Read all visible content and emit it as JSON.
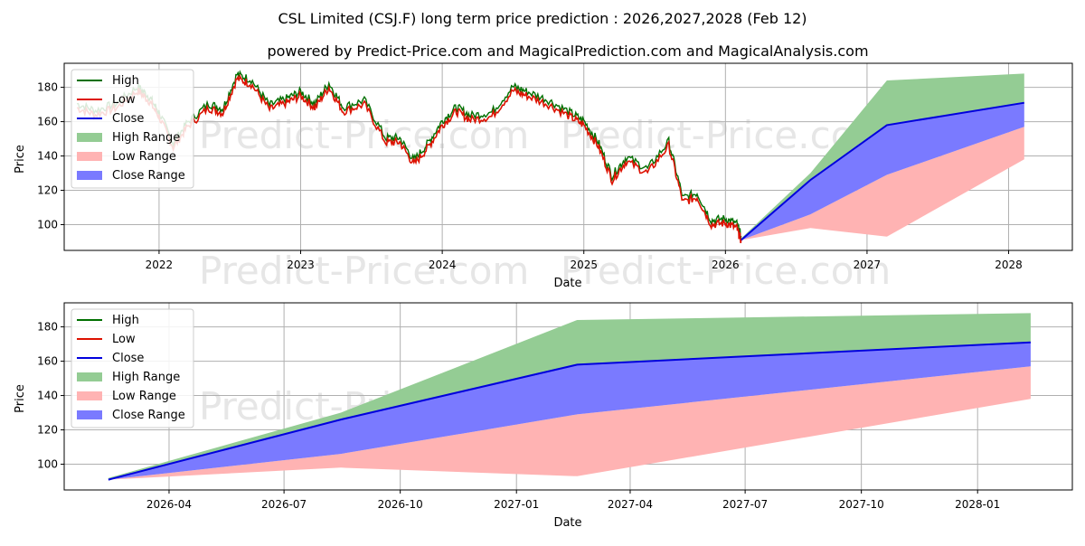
{
  "title": "CSL Limited (CSJ.F) long term price prediction : 2026,2027,2028 (Feb 12)",
  "subtitle": "powered by Predict-Price.com and MagicalPrediction.com and MagicalAnalysis.com",
  "watermark": "Predict-Price.com",
  "colors": {
    "high": "#007000",
    "low": "#dd1100",
    "close": "#0000dd",
    "high_range": "#94cc94",
    "low_range": "#ffb3b3",
    "close_range": "#7a7aff",
    "grid": "#b0b0b0"
  },
  "chart_data": [
    {
      "type": "line",
      "panel": "top",
      "xlabel": "Date",
      "ylabel": "Price",
      "xlim": [
        2021.33,
        2028.45
      ],
      "ylim": [
        85,
        194
      ],
      "x_ticks": [
        2022,
        2023,
        2024,
        2025,
        2026,
        2027,
        2028
      ],
      "x_tick_labels": [
        "2022",
        "2023",
        "2024",
        "2025",
        "2026",
        "2027",
        "2028"
      ],
      "y_ticks": [
        100,
        120,
        140,
        160,
        180
      ],
      "legend": [
        "High",
        "Low",
        "Close",
        "High Range",
        "Low Range",
        "Close Range"
      ],
      "legend_position": "top-left",
      "history": {
        "x": [
          2021.42,
          2021.55,
          2021.7,
          2021.85,
          2021.93,
          2022.0,
          2022.1,
          2022.2,
          2022.35,
          2022.45,
          2022.55,
          2022.65,
          2022.78,
          2022.9,
          2023.0,
          2023.1,
          2023.2,
          2023.3,
          2023.45,
          2023.6,
          2023.7,
          2023.8,
          2023.9,
          2024.0,
          2024.1,
          2024.2,
          2024.35,
          2024.5,
          2024.6,
          2024.75,
          2024.9,
          2025.0,
          2025.1,
          2025.2,
          2025.3,
          2025.45,
          2025.6,
          2025.7,
          2025.8,
          2025.9,
          2026.0,
          2026.08,
          2026.11
        ],
        "close": [
          168,
          164,
          168,
          178,
          172,
          163,
          145,
          157,
          168,
          165,
          185,
          182,
          167,
          171,
          175,
          168,
          180,
          166,
          170,
          148,
          148,
          135,
          145,
          158,
          166,
          161,
          163,
          178,
          175,
          170,
          163,
          158,
          146,
          126,
          137,
          130,
          146,
          113,
          116,
          100,
          101,
          98,
          91
        ],
        "high_offset": 2.5,
        "low_offset": -2.5
      },
      "forecast": {
        "x": [
          2026.11,
          2026.6,
          2027.14,
          2028.11
        ],
        "high": [
          92,
          130,
          184,
          188
        ],
        "close": [
          91,
          126,
          158,
          171
        ],
        "close_range_low": [
          91,
          106,
          129,
          157
        ],
        "low": [
          91,
          98,
          93,
          138
        ]
      }
    },
    {
      "type": "area",
      "panel": "bottom",
      "xlabel": "Date",
      "ylabel": "Price",
      "xlim": [
        "2026-01-08",
        "2028-03-16"
      ],
      "ylim": [
        85,
        194
      ],
      "x_ticks": [
        "2026-04",
        "2026-07",
        "2026-10",
        "2027-01",
        "2027-04",
        "2027-07",
        "2027-10",
        "2028-01"
      ],
      "y_ticks": [
        100,
        120,
        140,
        160,
        180
      ],
      "legend": [
        "High",
        "Low",
        "Close",
        "High Range",
        "Low Range",
        "Close Range"
      ],
      "legend_position": "top-left",
      "forecast": {
        "x": [
          "2026-02-12",
          "2026-08-15",
          "2027-02-18",
          "2028-02-12"
        ],
        "high": [
          92,
          130,
          184,
          188
        ],
        "close": [
          91,
          126,
          158,
          171
        ],
        "close_range_low": [
          91,
          106,
          129,
          157
        ],
        "low": [
          91,
          98,
          93,
          138
        ]
      }
    }
  ]
}
